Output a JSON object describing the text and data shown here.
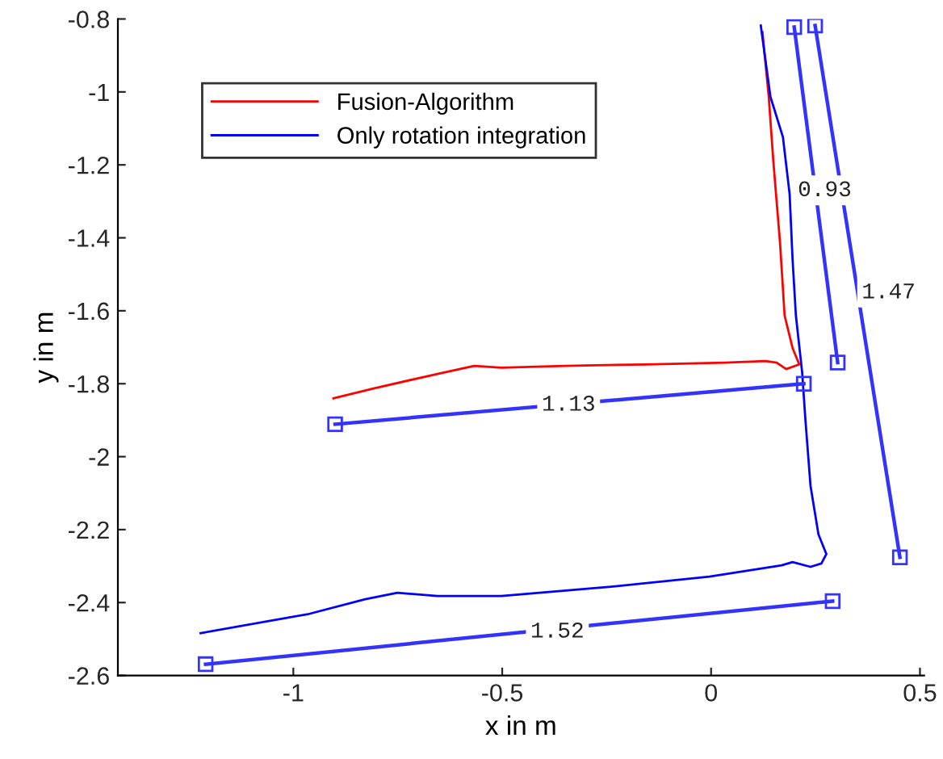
{
  "chart_data": {
    "type": "line",
    "xlabel": "x in m",
    "ylabel": "y in m",
    "xlim": [
      -1.42,
      0.51
    ],
    "ylim": [
      -2.6,
      -0.8
    ],
    "xticks": [
      -1,
      -0.5,
      0,
      0.5
    ],
    "yticks": [
      -2.6,
      -2.4,
      -2.2,
      -2,
      -1.8,
      -1.6,
      -1.4,
      -1.2,
      -1,
      -0.8
    ],
    "grid": false,
    "legend": "top left",
    "marker": "none",
    "line_style": "solid",
    "series": [
      {
        "name": "Fusion-Algorithm",
        "color": "#ff0000",
        "x": [
          0.123,
          0.138,
          0.149,
          0.165,
          0.176,
          0.195,
          0.211,
          0.18,
          0.157,
          0.13,
          0.034,
          -0.157,
          -0.349,
          -0.502,
          -0.567,
          -0.655,
          -0.808,
          -0.904
        ],
        "values": [
          -0.836,
          -1.013,
          -1.19,
          -1.413,
          -1.613,
          -1.702,
          -1.747,
          -1.76,
          -1.742,
          -1.738,
          -1.742,
          -1.747,
          -1.751,
          -1.756,
          -1.751,
          -1.773,
          -1.813,
          -1.84
        ]
      },
      {
        "name": "Only rotation integration",
        "color": "#0000ff",
        "x": [
          0.119,
          0.142,
          0.172,
          0.188,
          0.195,
          0.203,
          0.218,
          0.226,
          0.238,
          0.257,
          0.276,
          0.264,
          0.238,
          0.195,
          0.169,
          -0.004,
          -0.234,
          -0.502,
          -0.655,
          -0.751,
          -0.828,
          -0.962,
          -1.222
        ],
        "values": [
          -0.818,
          -1.013,
          -1.124,
          -1.28,
          -1.458,
          -1.613,
          -1.769,
          -1.902,
          -2.08,
          -2.213,
          -2.267,
          -2.293,
          -2.302,
          -2.289,
          -2.298,
          -2.329,
          -2.356,
          -2.382,
          -2.382,
          -2.373,
          -2.391,
          -2.431,
          -2.484
        ]
      },
      {
        "color": "#3333ff",
        "marker": "square",
        "x": [
          -0.9,
          0.222
        ],
        "values": [
          -1.911,
          -1.8
        ]
      },
      {
        "color": "#3333ff",
        "marker": "square",
        "x": [
          -1.21,
          0.291
        ],
        "values": [
          -2.569,
          -2.396
        ]
      },
      {
        "color": "#3333ff",
        "marker": "square",
        "x": [
          0.199,
          0.303
        ],
        "values": [
          -0.822,
          -1.742
        ]
      },
      {
        "color": "#3333ff",
        "marker": "square",
        "x": [
          0.249,
          0.452
        ],
        "values": [
          -0.818,
          -2.276
        ]
      }
    ],
    "annotations": [
      {
        "text": "1.13",
        "x": -0.341,
        "y": -1.858
      },
      {
        "text": "1.52",
        "x": -0.368,
        "y": -2.48
      },
      {
        "text": "0.93",
        "x": 0.272,
        "y": -1.27
      },
      {
        "text": "1.47",
        "x": 0.425,
        "y": -1.55
      }
    ]
  }
}
